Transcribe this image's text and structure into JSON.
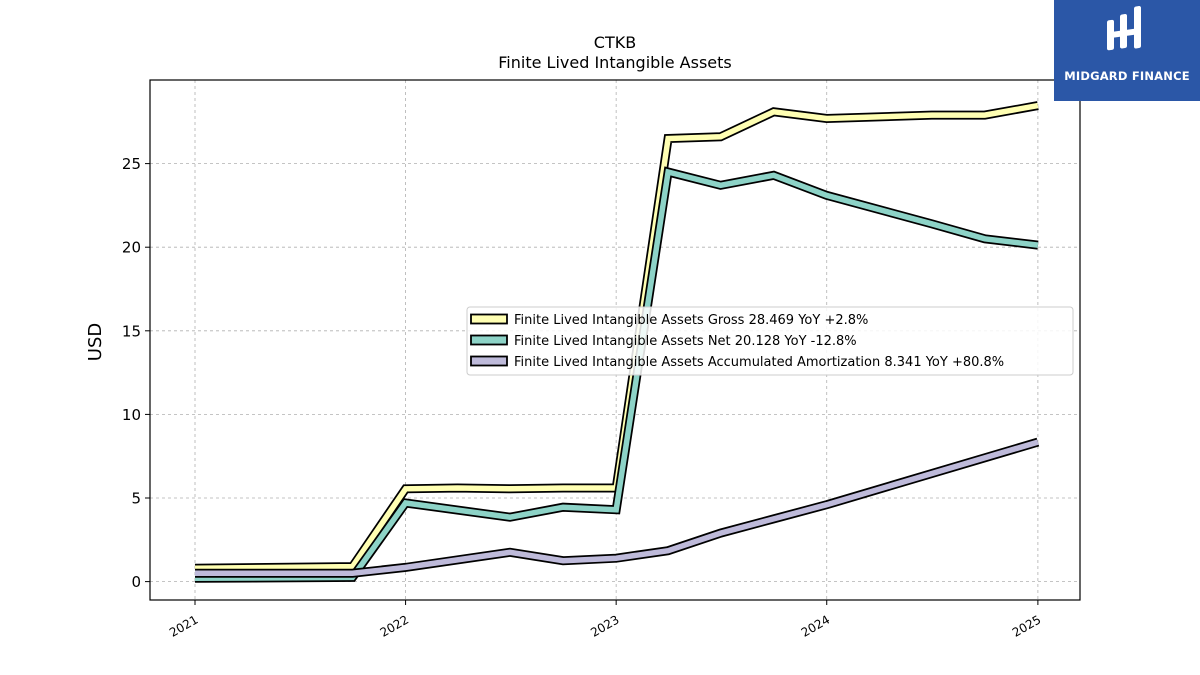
{
  "chart_data": {
    "type": "line",
    "title": "CTKB",
    "subtitle": "Finite Lived Intangible Assets",
    "ylabel": "USD",
    "xlabel": "",
    "xlim": [
      "2020-10-15",
      "2025-03-15"
    ],
    "ylim": [
      -1.1,
      30.0
    ],
    "x_ticks": [
      "2021",
      "2022",
      "2023",
      "2024",
      "2025"
    ],
    "x_tick_dates": [
      "2021-01-01",
      "2022-01-01",
      "2023-01-01",
      "2024-01-01",
      "2025-01-01"
    ],
    "y_ticks": [
      0,
      5,
      10,
      15,
      20,
      25
    ],
    "grid": true,
    "legend_position": "center-right",
    "series": [
      {
        "name": "Finite Lived Intangible Assets Gross  28.469 YoY +2.8%",
        "color": "#ffffb3",
        "x": [
          "2021-01-01",
          "2021-10-01",
          "2022-01-01",
          "2022-04-01",
          "2022-07-01",
          "2022-10-01",
          "2023-01-01",
          "2023-04-01",
          "2023-07-01",
          "2023-10-01",
          "2024-01-01",
          "2024-07-01",
          "2024-10-01",
          "2025-01-01"
        ],
        "values": [
          0.8,
          0.9,
          5.55,
          5.6,
          5.55,
          5.6,
          5.6,
          26.5,
          26.6,
          28.1,
          27.7,
          27.9,
          27.9,
          28.469
        ]
      },
      {
        "name": "Finite Lived Intangible Assets Net  20.128 YoY -12.8%",
        "color": "#8dd3c7",
        "x": [
          "2021-01-01",
          "2021-10-01",
          "2022-01-01",
          "2022-07-01",
          "2022-10-01",
          "2023-01-01",
          "2023-04-01",
          "2023-07-01",
          "2023-10-01",
          "2024-01-01",
          "2024-07-01",
          "2024-10-01",
          "2025-01-01"
        ],
        "values": [
          0.2,
          0.25,
          4.7,
          3.85,
          4.45,
          4.3,
          24.5,
          23.7,
          24.3,
          23.1,
          21.4,
          20.5,
          20.128
        ]
      },
      {
        "name": "Finite Lived Intangible Assets Accumulated Amortization  8.341 YoY +80.8%",
        "color": "#bebada",
        "x": [
          "2021-01-01",
          "2021-10-01",
          "2022-01-01",
          "2022-07-01",
          "2022-10-01",
          "2023-01-01",
          "2023-04-01",
          "2023-07-01",
          "2023-10-01",
          "2024-01-01",
          "2025-01-01"
        ],
        "values": [
          0.5,
          0.5,
          0.85,
          1.75,
          1.25,
          1.4,
          1.85,
          2.9,
          3.75,
          4.6,
          8.341
        ]
      }
    ]
  },
  "logo": {
    "text": "MIDGARD FINANCE",
    "color": "#2b57a7"
  }
}
